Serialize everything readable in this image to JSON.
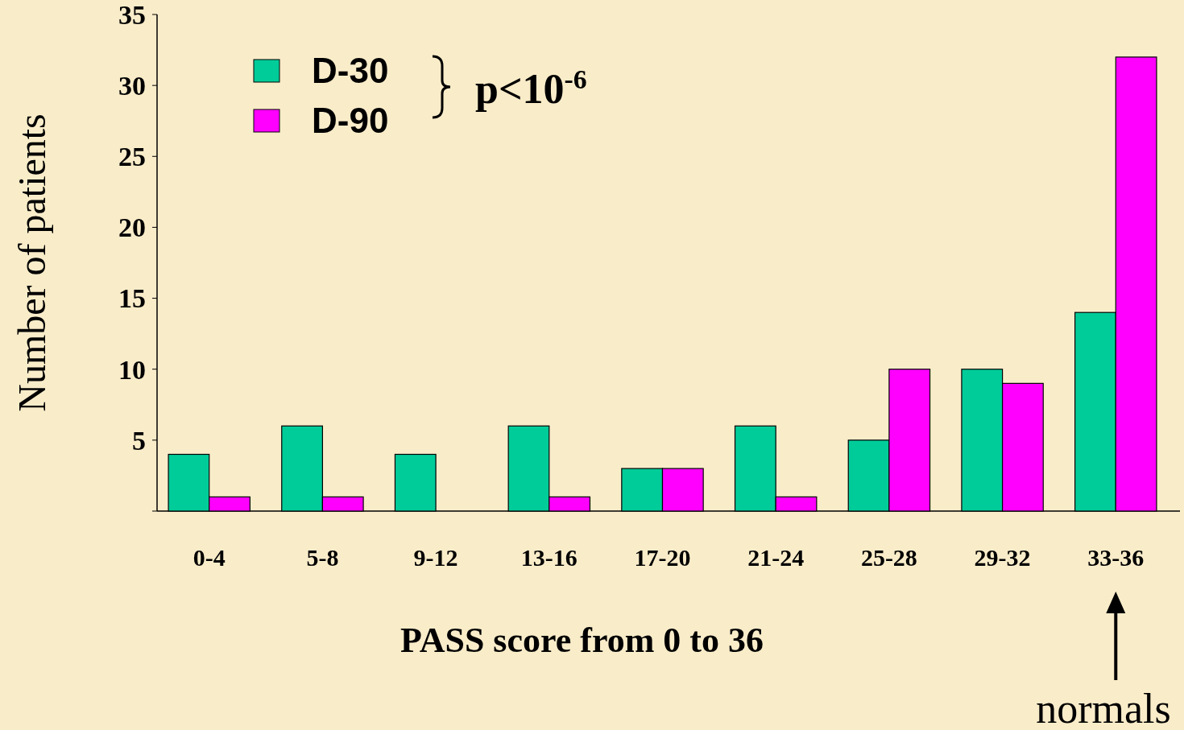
{
  "chart_data": {
    "type": "bar",
    "categories": [
      "0-4",
      "5-8",
      "9-12",
      "13-16",
      "17-20",
      "21-24",
      "25-28",
      "29-32",
      "33-36"
    ],
    "series": [
      {
        "name": "D-30",
        "color": "#00cc99",
        "values": [
          4,
          6,
          4,
          6,
          3,
          6,
          5,
          10,
          14
        ]
      },
      {
        "name": "D-90",
        "color": "#ff00ff",
        "values": [
          1,
          1,
          0,
          1,
          3,
          1,
          10,
          9,
          32
        ]
      }
    ],
    "xlabel": "PASS score from 0 to 36",
    "ylabel": "Number of patients",
    "ylim": [
      0,
      35
    ],
    "yticks": [
      {
        "value": 0,
        "label": null
      },
      5,
      10,
      15,
      20,
      25,
      30,
      35
    ],
    "legend": "top left",
    "grid": false,
    "annotations": [
      "p<10$^{-6}$",
      "normals"
    ]
  }
}
